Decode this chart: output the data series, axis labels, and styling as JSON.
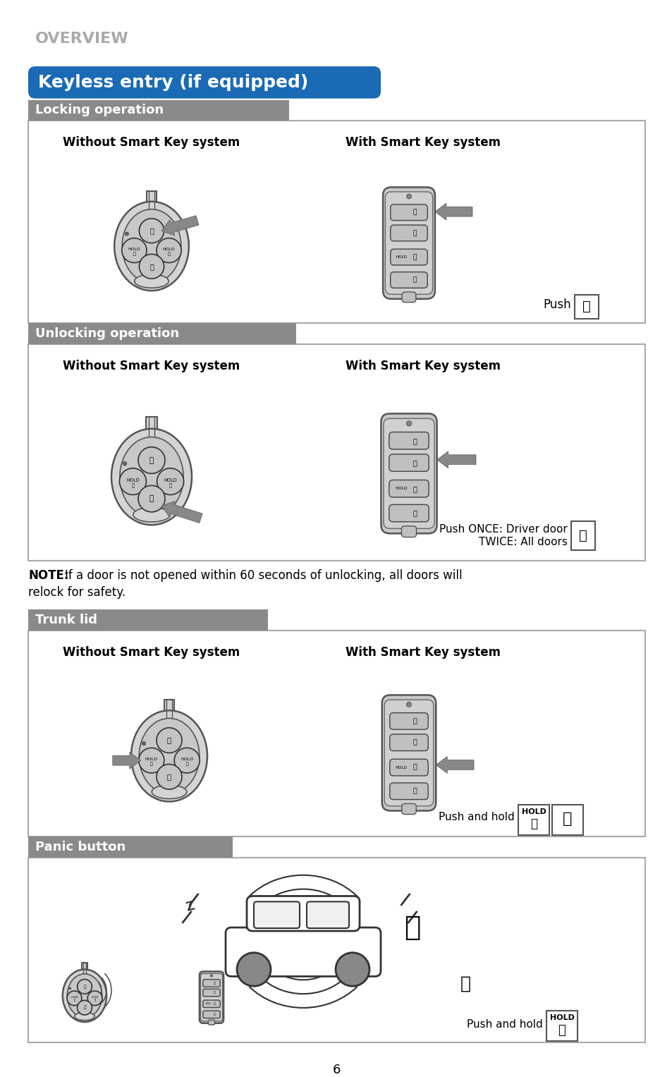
{
  "page_bg": "#ffffff",
  "overview_text": "OVERVIEW",
  "overview_color": "#aaaaaa",
  "title_text": "Keyless entry (if equipped)",
  "title_bg": "#1a6ab5",
  "title_text_color": "#ffffff",
  "section_bg": "#888888",
  "section_text_color": "#ffffff",
  "sections": [
    {
      "label": "Locking operation"
    },
    {
      "label": "Unlocking operation"
    },
    {
      "label": "Trunk lid"
    },
    {
      "label": "Panic button"
    }
  ],
  "note_bold": "NOTE:",
  "note_rest": " If a door is not opened within 60 seconds of unlocking, all doors will\nrelock for safety.",
  "locking_push_text": "Push",
  "unlocking_push_text1": "Push ONCE: Driver door",
  "unlocking_push_text2": "TWICE: All doors",
  "trunk_push_text": "Push and hold",
  "panic_push_text": "Push and hold",
  "page_num": "6",
  "arrow_color": "#888888",
  "fob_body_color": "#d4d4d4",
  "fob_inner_color": "#c2c2c2",
  "fob_button_color": "#c0c0c0",
  "fob_edge_color": "#555555",
  "smart_fob_color": "#c8c8c8",
  "smart_fob_edge": "#444444"
}
